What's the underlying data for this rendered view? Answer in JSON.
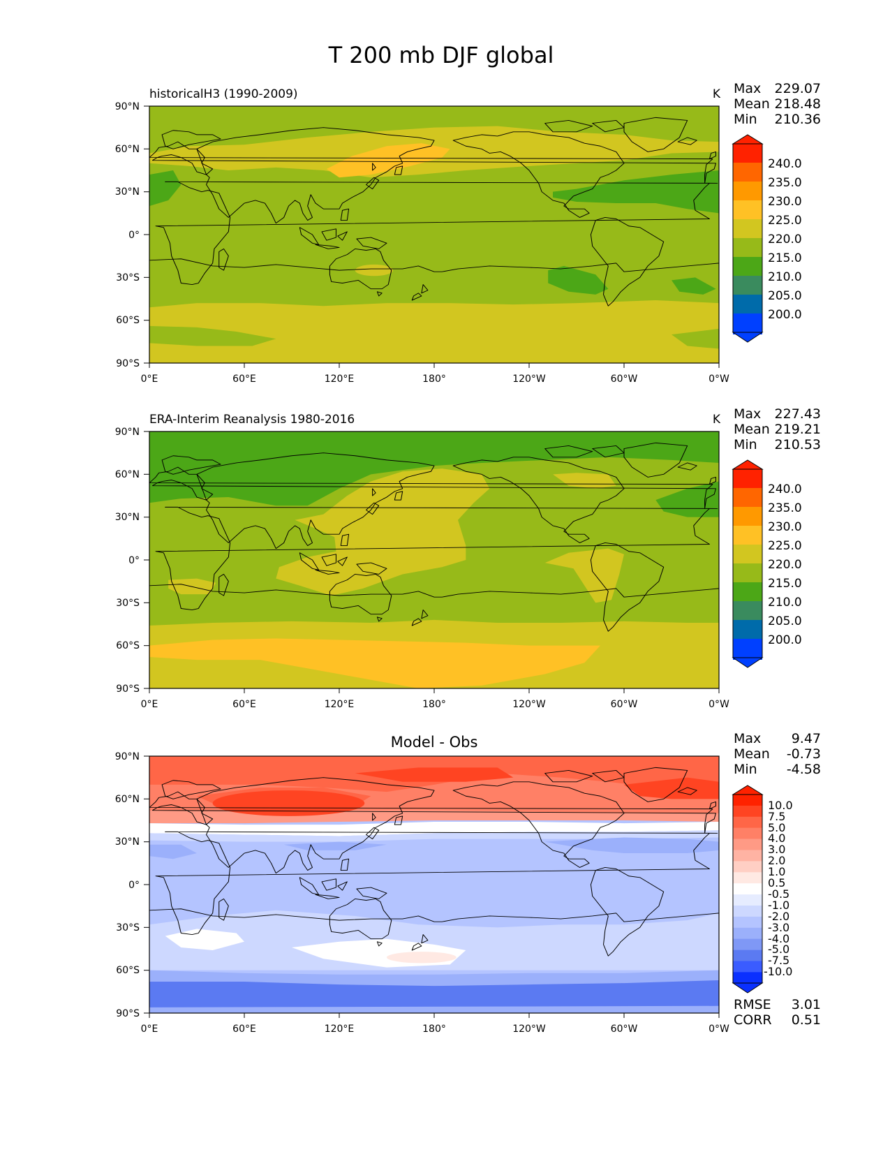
{
  "figure": {
    "title": "T 200 mb DJF global",
    "x_ticks": [
      "0°E",
      "60°E",
      "120°E",
      "180°",
      "120°W",
      "60°W",
      "0°W"
    ],
    "y_ticks": [
      "90°N",
      "60°N",
      "30°N",
      "0°",
      "30°S",
      "60°S",
      "90°S"
    ]
  },
  "panels": [
    {
      "id": "test",
      "left_title": "historicalH3 (1990-2009)",
      "center_title": "",
      "units": "K",
      "stats": [
        {
          "label": "Max",
          "value": "229.07"
        },
        {
          "label": "Mean",
          "value": "218.48"
        },
        {
          "label": "Min",
          "value": "210.36"
        }
      ],
      "colorbar": {
        "labels": [
          "240.0",
          "235.0",
          "230.0",
          "225.0",
          "220.0",
          "215.0",
          "210.0",
          "205.0",
          "200.0"
        ],
        "colors": [
          "#ff2200",
          "#ff6600",
          "#ff9900",
          "#ffc125",
          "#d2c620",
          "#97ba19",
          "#4ca717",
          "#3a8b5e",
          "#006baa",
          "#0040ff"
        ]
      },
      "extra_stats": []
    },
    {
      "id": "ref",
      "left_title": "ERA-Interim Reanalysis 1980-2016",
      "center_title": "",
      "units": "K",
      "stats": [
        {
          "label": "Max",
          "value": "227.43"
        },
        {
          "label": "Mean",
          "value": "219.21"
        },
        {
          "label": "Min",
          "value": "210.53"
        }
      ],
      "colorbar": {
        "labels": [
          "240.0",
          "235.0",
          "230.0",
          "225.0",
          "220.0",
          "215.0",
          "210.0",
          "205.0",
          "200.0"
        ],
        "colors": [
          "#ff2200",
          "#ff6600",
          "#ff9900",
          "#ffc125",
          "#d2c620",
          "#97ba19",
          "#4ca717",
          "#3a8b5e",
          "#006baa",
          "#0040ff"
        ]
      },
      "extra_stats": []
    },
    {
      "id": "diff",
      "left_title": "",
      "center_title": "Model - Obs",
      "units": "",
      "stats": [
        {
          "label": "Max",
          "value": "9.47"
        },
        {
          "label": "Mean",
          "value": "-0.73"
        },
        {
          "label": "Min",
          "value": "-4.58"
        }
      ],
      "colorbar": {
        "labels": [
          "10.0",
          "7.5",
          "5.0",
          "4.0",
          "3.0",
          "2.0",
          "1.0",
          "0.5",
          "-0.5",
          "-1.0",
          "-2.0",
          "-3.0",
          "-4.0",
          "-5.0",
          "-7.5",
          "-10.0"
        ],
        "colors": [
          "#ff2200",
          "#ff4422",
          "#ff6647",
          "#ff8066",
          "#ff9a85",
          "#ffb3a3",
          "#ffcfc4",
          "#ffe9e3",
          "#ffffff",
          "#e6ecff",
          "#cdd8ff",
          "#b4c4ff",
          "#9bb0fb",
          "#7f98f6",
          "#5b7af2",
          "#3a5cff",
          "#0a30ff"
        ]
      },
      "extra_stats": [
        {
          "label": "RMSE",
          "value": "3.01"
        },
        {
          "label": "CORR",
          "value": "0.51"
        }
      ]
    }
  ]
}
